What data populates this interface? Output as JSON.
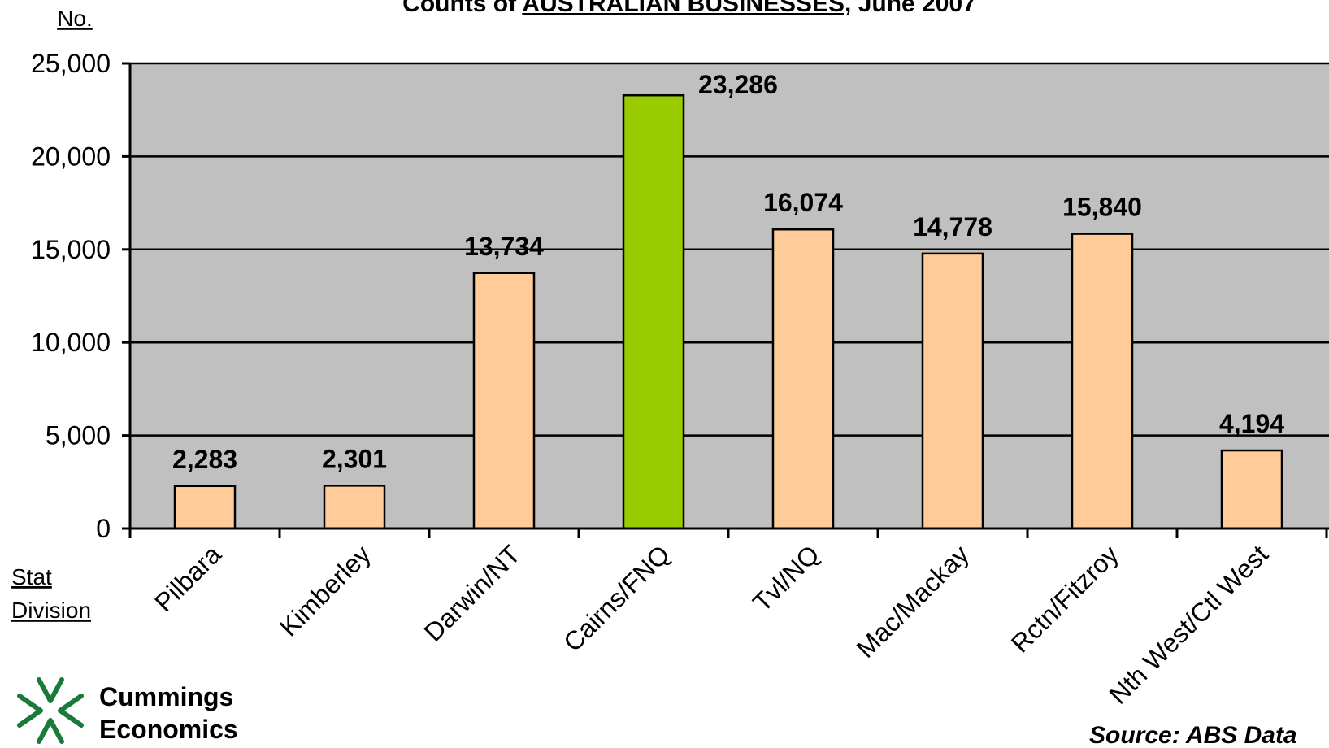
{
  "title": {
    "prefix": "Counts of ",
    "highlight": "AUSTRALIAN BUSINESSES,",
    "suffix": " June 2007"
  },
  "y_axis_unit": "No.",
  "x_axis_corner_label_line1": "Stat",
  "x_axis_corner_label_line2": "Division",
  "logo": {
    "line1": "Cummings",
    "line2": "Economics"
  },
  "source": "Source: ABS Data",
  "colors": {
    "plot_background": "#c0c0c0",
    "bar_default": "#ffcc99",
    "bar_highlight": "#99cc00",
    "logo_green": "#1a7a3a"
  },
  "chart_data": {
    "type": "bar",
    "categories": [
      "Pilbara",
      "Kimberley",
      "Darwin/NT",
      "Cairns/FNQ",
      "Tvl/NQ",
      "Mac/Mackay",
      "Rctn/Fitzroy",
      "Nth West/Ctl West"
    ],
    "values": [
      2283,
      2301,
      13734,
      23286,
      16074,
      14778,
      15840,
      4194
    ],
    "data_labels": [
      "2,283",
      "2,301",
      "13,734",
      "23,286",
      "16,074",
      "14,778",
      "15,840",
      "4,194"
    ],
    "highlight_index": 3,
    "ylim": [
      0,
      25000
    ],
    "yticks": [
      0,
      5000,
      10000,
      15000,
      20000,
      25000
    ],
    "ytick_labels": [
      "0",
      "5,000",
      "10,000",
      "15,000",
      "20,000",
      "25,000"
    ],
    "grid": true,
    "legend": "none"
  }
}
